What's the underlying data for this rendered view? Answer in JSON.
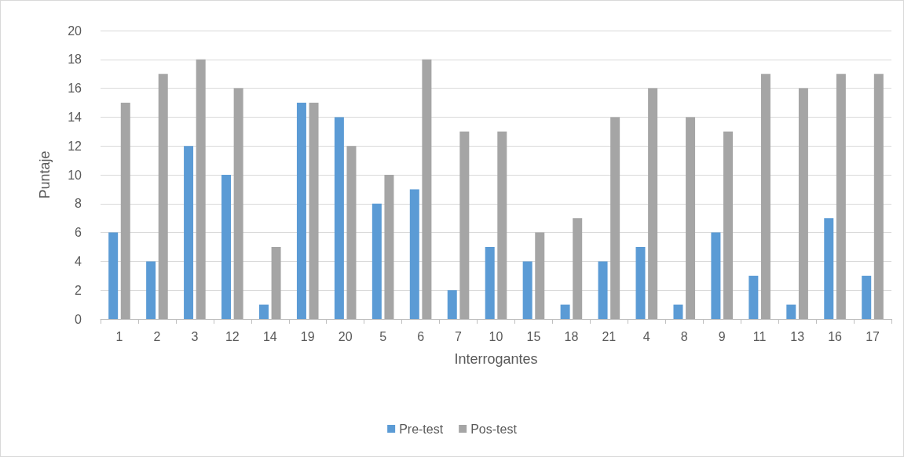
{
  "chart_data": {
    "type": "bar",
    "xlabel": "Interrogantes",
    "ylabel": "Puntaje",
    "categories": [
      "1",
      "2",
      "3",
      "12",
      "14",
      "19",
      "20",
      "5",
      "6",
      "7",
      "10",
      "15",
      "18",
      "21",
      "4",
      "8",
      "9",
      "11",
      "13",
      "16",
      "17"
    ],
    "series": [
      {
        "name": "Pre-test",
        "color": "#5b9bd5",
        "values": [
          6,
          4,
          12,
          10,
          1,
          15,
          14,
          8,
          9,
          2,
          5,
          4,
          1,
          4,
          5,
          1,
          6,
          3,
          1,
          7,
          3
        ]
      },
      {
        "name": "Pos-test",
        "color": "#a5a5a5",
        "values": [
          15,
          17,
          18,
          16,
          5,
          15,
          12,
          10,
          18,
          13,
          13,
          6,
          7,
          14,
          16,
          14,
          13,
          17,
          16,
          17,
          17
        ]
      }
    ],
    "ylim": [
      0,
      20
    ],
    "yticks": [
      0,
      2,
      4,
      6,
      8,
      10,
      12,
      14,
      16,
      18,
      20
    ],
    "grid": "y",
    "legend": "bottom"
  }
}
